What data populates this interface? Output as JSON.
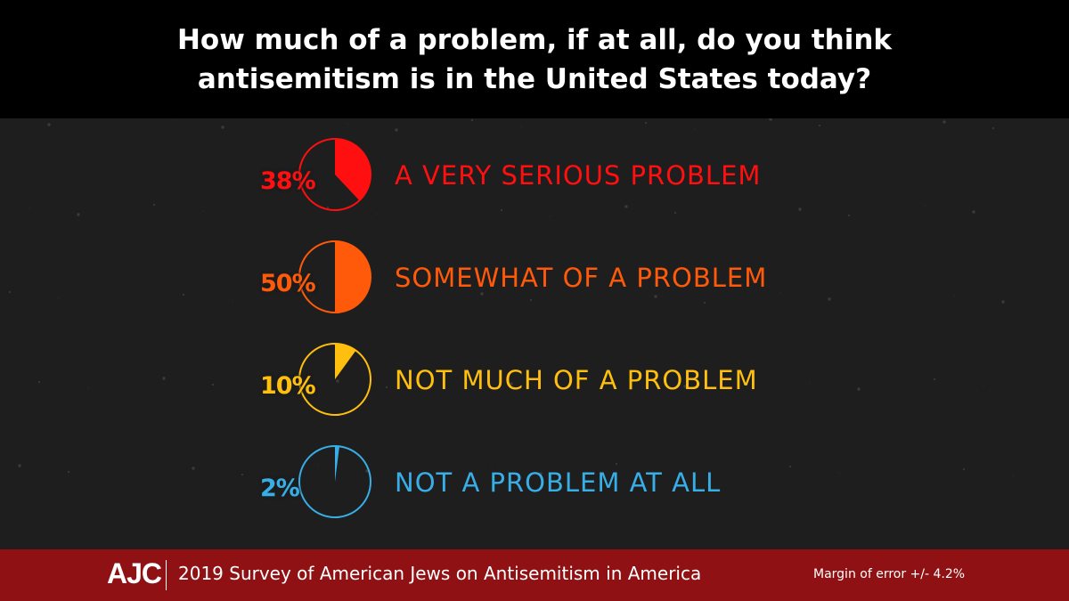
{
  "header": {
    "line1": "How much of a problem, if at all, do you think",
    "line2": "antisemitism is in the United States today?"
  },
  "chart_data": {
    "type": "pie",
    "title": "How much of a problem, if at all, do you think antisemitism is in the United States today?",
    "series": [
      {
        "name": "A VERY SERIOUS PROBLEM",
        "value": 38,
        "label": "38%",
        "color": "#ff0f0f"
      },
      {
        "name": "SOMEWHAT OF A PROBLEM",
        "value": 50,
        "label": "50%",
        "color": "#ff5a0a"
      },
      {
        "name": "NOT MUCH OF A PROBLEM",
        "value": 10,
        "label": "10%",
        "color": "#ffbf0f"
      },
      {
        "name": "NOT A PROBLEM AT ALL",
        "value": 2,
        "label": "2%",
        "color": "#38aee6"
      }
    ]
  },
  "footer": {
    "logo": "AJC",
    "survey": "2019 Survey of American Jews on Antisemitism in America",
    "margin": "Margin of error +/- 4.2%"
  }
}
